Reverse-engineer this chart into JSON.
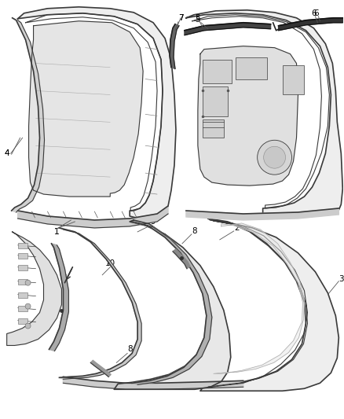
{
  "background_color": "#ffffff",
  "line_color": "#3a3a3a",
  "fig_width": 4.38,
  "fig_height": 5.33,
  "dpi": 100,
  "panel_fill": "#f0f0f0",
  "strip_fill": "#cccccc",
  "dark_strip": "#555555",
  "glass_fill": "#e8e8e8"
}
